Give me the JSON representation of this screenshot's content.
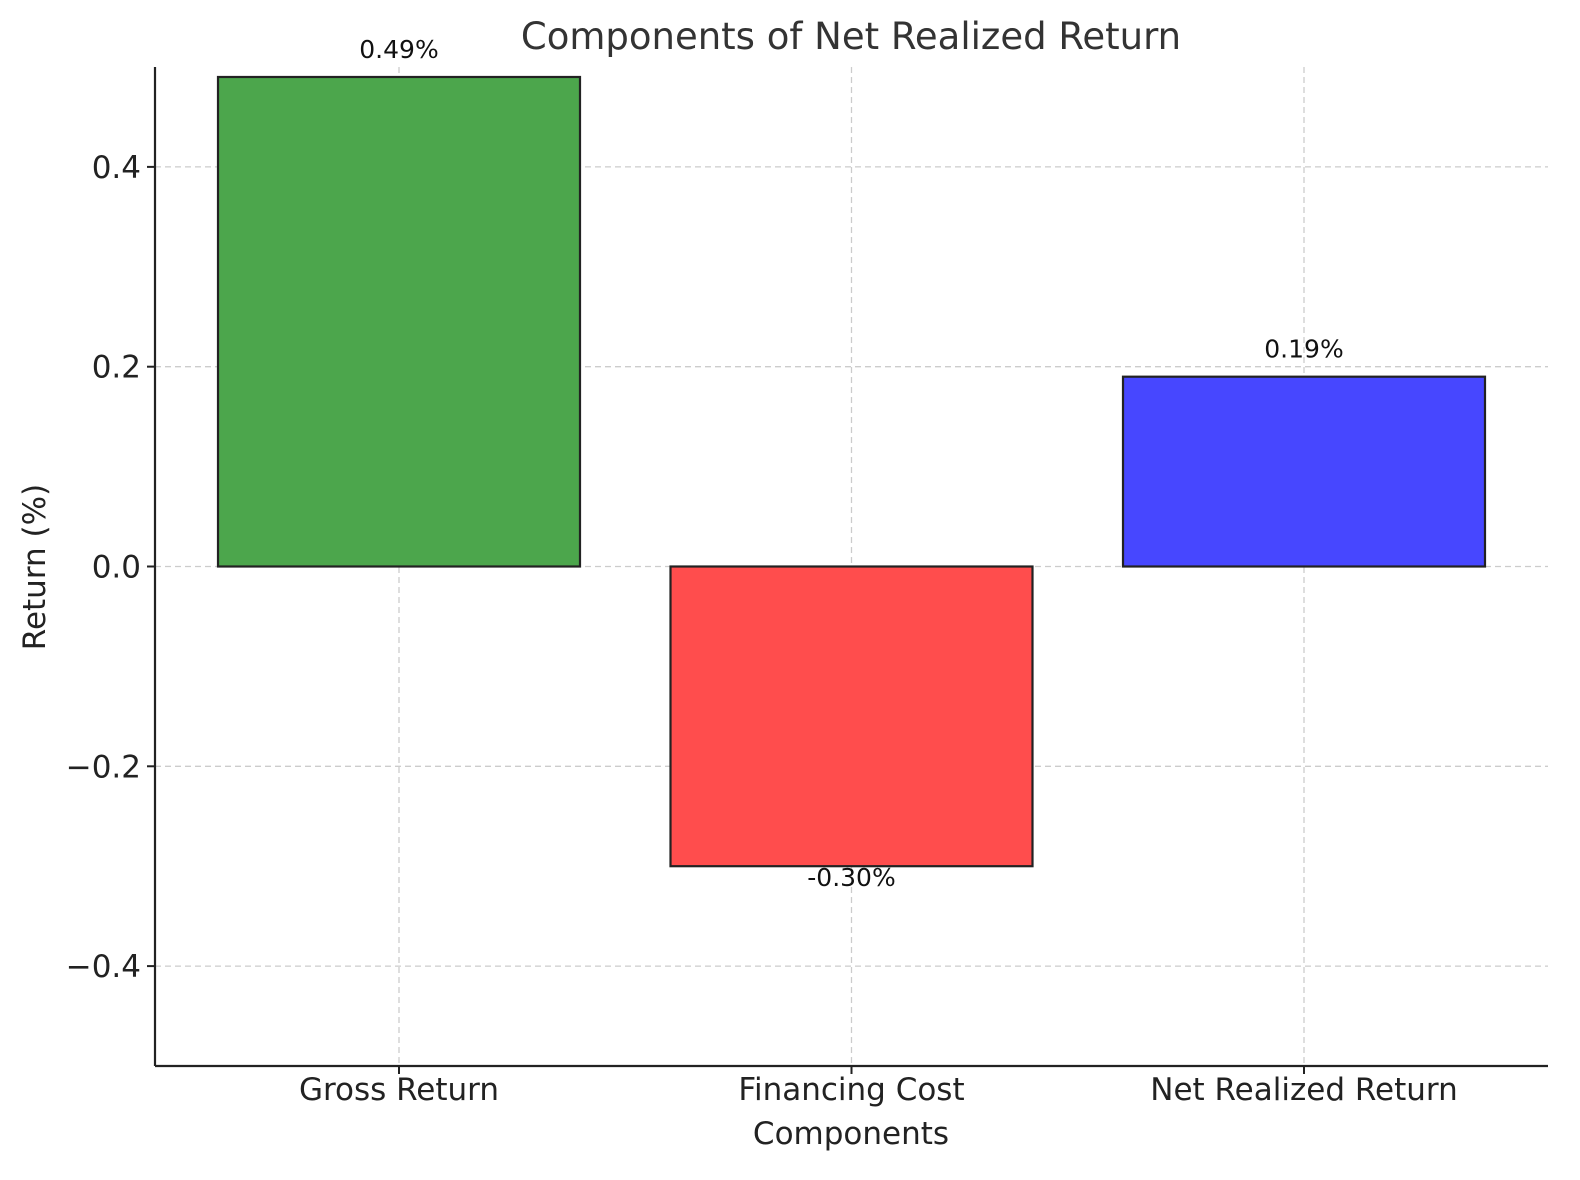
{
  "chart_data": {
    "type": "bar",
    "title": "Components of Net Realized Return",
    "xlabel": "Components",
    "ylabel": "Return (%)",
    "categories": [
      "Gross Return",
      "Financing Cost",
      "Net Realized Return"
    ],
    "values": [
      0.49,
      -0.3,
      0.19
    ],
    "data_labels": [
      "0.49%",
      "-0.30%",
      "0.19%"
    ],
    "colors": [
      "#4ca64c",
      "#ff4d4d",
      "#4747ff"
    ],
    "ylim": [
      -0.5,
      0.5
    ],
    "yticks": [
      -0.4,
      -0.2,
      0.0,
      0.2,
      0.4
    ],
    "ytick_labels": [
      "−0.4",
      "−0.2",
      "0.0",
      "0.2",
      "0.4"
    ],
    "grid": true
  }
}
